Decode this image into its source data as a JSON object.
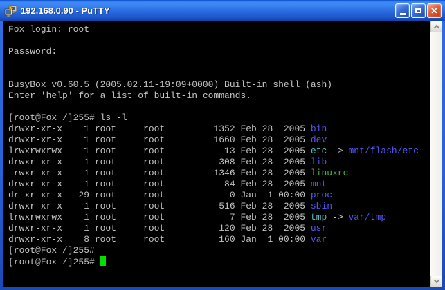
{
  "titlebar": {
    "title": "192.168.0.90 - PuTTY",
    "icon": "putty-terminal-icon",
    "minimize_label": "minimize",
    "maximize_label": "maximize",
    "close_label": "close"
  },
  "colors": {
    "fg": "#c2c2c2",
    "dir": "#5454f0",
    "link": "#58b6b6",
    "exe": "#3fb53f",
    "cursor": "#00e000",
    "terminal_bg": "#000000",
    "titlebar_blue": "#2a6ae0",
    "close_red": "#d9512b"
  },
  "terminal": {
    "lines": [
      {
        "segments": [
          {
            "t": "Fox login: root",
            "c": "fg"
          }
        ]
      },
      {
        "segments": []
      },
      {
        "segments": [
          {
            "t": "Password:",
            "c": "fg"
          }
        ]
      },
      {
        "segments": []
      },
      {
        "segments": []
      },
      {
        "segments": [
          {
            "t": "BusyBox v0.60.5 (2005.02.11-19:09+0000) Built-in shell (ash)",
            "c": "fg"
          }
        ]
      },
      {
        "segments": [
          {
            "t": "Enter 'help' for a list of built-in commands.",
            "c": "fg"
          }
        ]
      },
      {
        "segments": []
      },
      {
        "segments": [
          {
            "t": "[root@Fox /]255# ls -l",
            "c": "fg"
          }
        ]
      },
      {
        "segments": [
          {
            "t": "drwxr-xr-x    1 root     root         1352 Feb 28  2005 ",
            "c": "fg"
          },
          {
            "t": "bin",
            "c": "dir"
          }
        ]
      },
      {
        "segments": [
          {
            "t": "drwxr-xr-x    1 root     root         1660 Feb 28  2005 ",
            "c": "fg"
          },
          {
            "t": "dev",
            "c": "dir"
          }
        ]
      },
      {
        "segments": [
          {
            "t": "lrwxrwxrwx    1 root     root           13 Feb 28  2005 ",
            "c": "fg"
          },
          {
            "t": "etc",
            "c": "link"
          },
          {
            "t": " -> ",
            "c": "fg"
          },
          {
            "t": "mnt/flash/etc",
            "c": "dir"
          }
        ]
      },
      {
        "segments": [
          {
            "t": "drwxr-xr-x    1 root     root          308 Feb 28  2005 ",
            "c": "fg"
          },
          {
            "t": "lib",
            "c": "dir"
          }
        ]
      },
      {
        "segments": [
          {
            "t": "-rwxr-xr-x    1 root     root         1346 Feb 28  2005 ",
            "c": "fg"
          },
          {
            "t": "linuxrc",
            "c": "exe"
          }
        ]
      },
      {
        "segments": [
          {
            "t": "drwxr-xr-x    1 root     root           84 Feb 28  2005 ",
            "c": "fg"
          },
          {
            "t": "mnt",
            "c": "dir"
          }
        ]
      },
      {
        "segments": [
          {
            "t": "dr-xr-xr-x   29 root     root            0 Jan  1 00:00 ",
            "c": "fg"
          },
          {
            "t": "proc",
            "c": "dir"
          }
        ]
      },
      {
        "segments": [
          {
            "t": "drwxr-xr-x    1 root     root          516 Feb 28  2005 ",
            "c": "fg"
          },
          {
            "t": "sbin",
            "c": "dir"
          }
        ]
      },
      {
        "segments": [
          {
            "t": "lrwxrwxrwx    1 root     root            7 Feb 28  2005 ",
            "c": "fg"
          },
          {
            "t": "tmp",
            "c": "link"
          },
          {
            "t": " -> ",
            "c": "fg"
          },
          {
            "t": "var/tmp",
            "c": "dir"
          }
        ]
      },
      {
        "segments": [
          {
            "t": "drwxr-xr-x    1 root     root          120 Feb 28  2005 ",
            "c": "fg"
          },
          {
            "t": "usr",
            "c": "dir"
          }
        ]
      },
      {
        "segments": [
          {
            "t": "drwxr-xr-x    8 root     root          160 Jan  1 00:00 ",
            "c": "fg"
          },
          {
            "t": "var",
            "c": "dir"
          }
        ]
      },
      {
        "segments": [
          {
            "t": "[root@Fox /]255#",
            "c": "fg"
          }
        ]
      },
      {
        "segments": [
          {
            "t": "[root@Fox /]255# ",
            "c": "fg"
          }
        ],
        "cursor": true
      }
    ]
  },
  "scrollbar": {
    "up_icon": "chevron-up-icon",
    "down_icon": "chevron-down-icon"
  }
}
